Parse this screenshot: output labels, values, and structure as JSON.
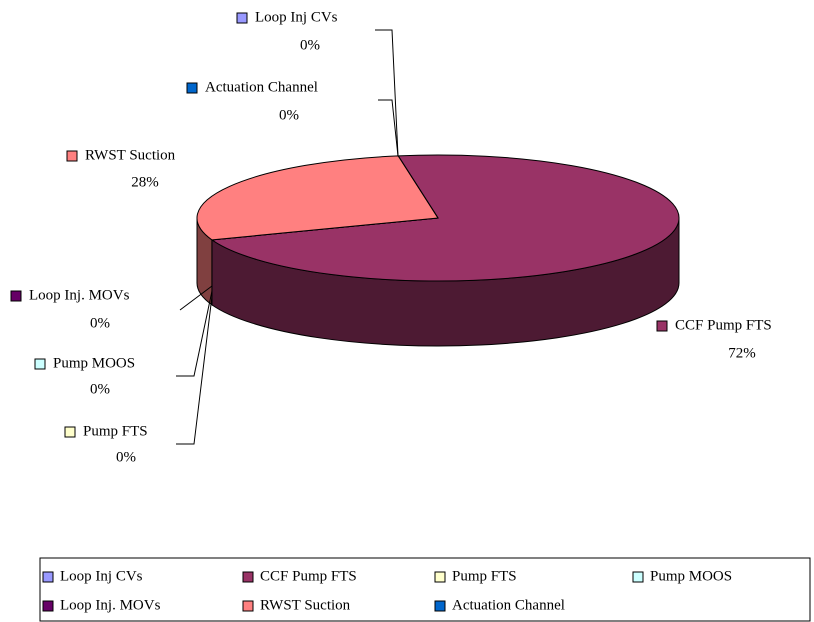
{
  "chart_data": {
    "type": "pie",
    "categories": [
      "Loop Inj CVs",
      "CCF Pump FTS",
      "Pump FTS",
      "Pump MOOS",
      "Loop Inj. MOVs",
      "RWST Suction",
      "Actuation Channel"
    ],
    "values": [
      0,
      72,
      0,
      0,
      0,
      28,
      0
    ],
    "value_labels": [
      "0%",
      "72%",
      "0%",
      "0%",
      "0%",
      "28%",
      "0%"
    ],
    "colors": [
      "#9999ff",
      "#993366",
      "#ffffcc",
      "#ccffff",
      "#660066",
      "#ff8080",
      "#0066cc"
    ],
    "legend": "bottom"
  }
}
